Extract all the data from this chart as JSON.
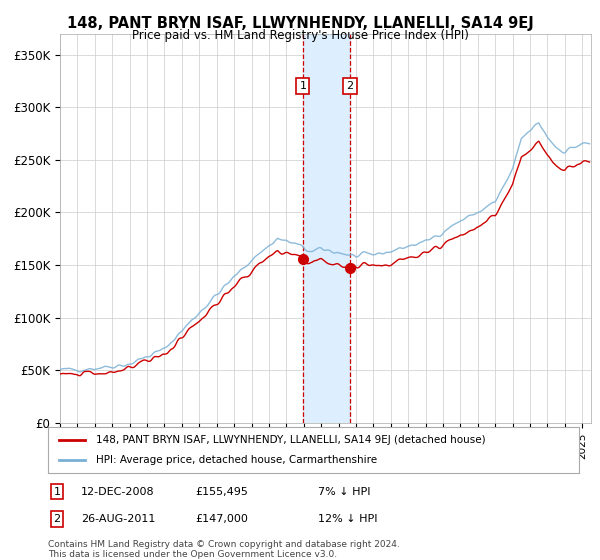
{
  "title": "148, PANT BRYN ISAF, LLWYNHENDY, LLANELLI, SA14 9EJ",
  "subtitle": "Price paid vs. HM Land Registry's House Price Index (HPI)",
  "ylabel_ticks": [
    "£0",
    "£50K",
    "£100K",
    "£150K",
    "£200K",
    "£250K",
    "£300K",
    "£350K"
  ],
  "ytick_vals": [
    0,
    50000,
    100000,
    150000,
    200000,
    250000,
    300000,
    350000
  ],
  "ylim": [
    0,
    370000
  ],
  "xlim_start": 1995.0,
  "xlim_end": 2025.5,
  "sale1": {
    "date_label": "12-DEC-2008",
    "price": 155495,
    "pct": "7%",
    "direction": "↓",
    "x": 2008.95
  },
  "sale2": {
    "date_label": "26-AUG-2011",
    "price": 147000,
    "pct": "12%",
    "direction": "↓",
    "x": 2011.65
  },
  "legend_line1": "148, PANT BRYN ISAF, LLWYNHENDY, LLANELLI, SA14 9EJ (detached house)",
  "legend_line2": "HPI: Average price, detached house, Carmarthenshire",
  "footnote1": "Contains HM Land Registry data © Crown copyright and database right 2024.",
  "footnote2": "This data is licensed under the Open Government Licence v3.0.",
  "line_color_price": "#cc0000",
  "line_color_hpi": "#7ab0d4",
  "shade_color": "#ddeeff",
  "marker_box_color": "#cc0000",
  "grid_color": "#cccccc",
  "bg_color": "#ffffff"
}
